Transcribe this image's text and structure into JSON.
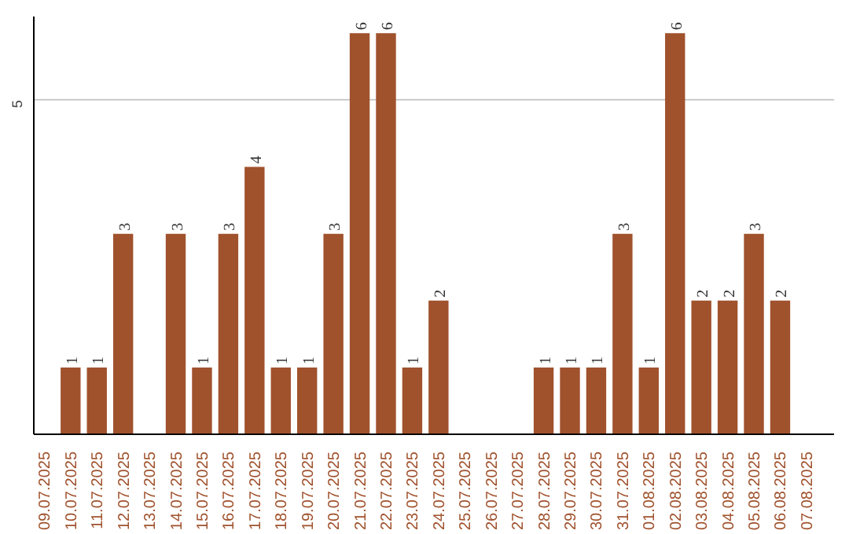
{
  "chart_data": {
    "type": "bar",
    "categories": [
      "09.07.2025",
      "10.07.2025",
      "11.07.2025",
      "12.07.2025",
      "13.07.2025",
      "14.07.2025",
      "15.07.2025",
      "16.07.2025",
      "17.07.2025",
      "18.07.2025",
      "19.07.2025",
      "20.07.2025",
      "21.07.2025",
      "22.07.2025",
      "23.07.2025",
      "24.07.2025",
      "25.07.2025",
      "26.07.2025",
      "27.07.2025",
      "28.07.2025",
      "29.07.2025",
      "30.07.2025",
      "31.07.2025",
      "01.08.2025",
      "02.08.2025",
      "03.08.2025",
      "04.08.2025",
      "05.08.2025",
      "06.08.2025",
      "07.08.2025"
    ],
    "values": [
      0,
      1,
      1,
      3,
      0,
      3,
      1,
      3,
      4,
      1,
      1,
      3,
      6,
      6,
      1,
      2,
      0,
      0,
      0,
      1,
      1,
      1,
      3,
      1,
      6,
      2,
      2,
      3,
      2,
      0
    ],
    "value_labels": [
      null,
      "1",
      "1",
      "3",
      null,
      "3",
      "1",
      "3",
      "4",
      "1",
      "1",
      "3",
      "6",
      "6",
      "1",
      "2",
      null,
      null,
      null,
      "1",
      "1",
      "1",
      "3",
      "1",
      "6",
      "2",
      "2",
      "3",
      "2",
      null
    ],
    "color": "#a0522d",
    "ylim": [
      0,
      6.25
    ],
    "yticks": [
      5
    ],
    "grid": "y"
  }
}
